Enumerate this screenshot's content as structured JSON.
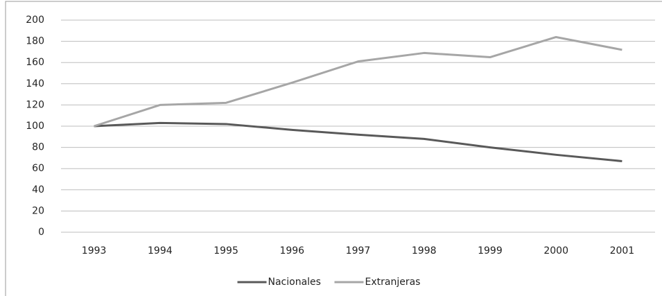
{
  "chart_data": {
    "type": "line",
    "categories": [
      "1993",
      "1994",
      "1995",
      "1996",
      "1997",
      "1998",
      "1999",
      "2000",
      "2001"
    ],
    "series": [
      {
        "name": "Nacionales",
        "color": "#595959",
        "values": [
          100,
          103,
          102,
          96.5,
          92,
          88,
          80,
          73,
          67
        ]
      },
      {
        "name": "Extranjeras",
        "color": "#a6a6a6",
        "values": [
          100,
          120,
          122,
          141,
          161,
          169,
          165,
          184,
          172
        ]
      }
    ],
    "ylim": [
      0,
      200
    ],
    "yticks": [
      0,
      20,
      40,
      60,
      80,
      100,
      120,
      140,
      160,
      180,
      200
    ],
    "grid": true,
    "legend": "bottom"
  }
}
